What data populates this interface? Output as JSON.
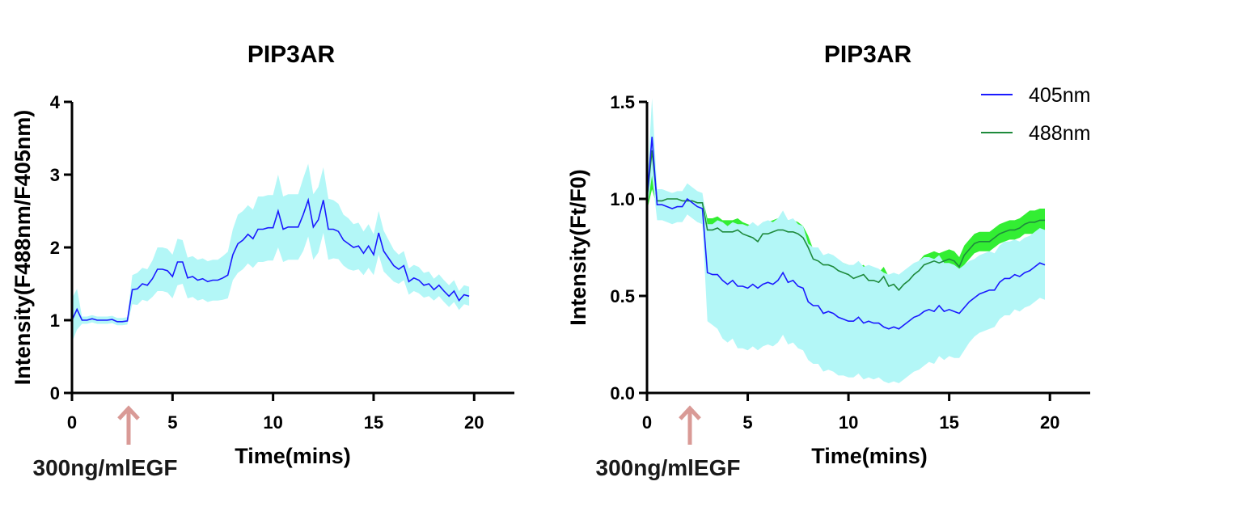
{
  "colors": {
    "axis": "#000000",
    "line_405": "#1a1aff",
    "band_405": "#b3f7f7",
    "line_488": "#1e8a3c",
    "band_488": "#33ee33",
    "arrow": "#d99a96"
  },
  "chart_data": [
    {
      "type": "line",
      "title": "PIP3AR",
      "xlabel": "Time(mins)",
      "ylabel": "Intensity(F488nm/F405nm)",
      "xlim": [
        0,
        22
      ],
      "ylim": [
        0,
        4
      ],
      "xticks": [
        0,
        5,
        10,
        15,
        20
      ],
      "yticks": [
        0,
        1,
        2,
        3,
        4
      ],
      "grid": false,
      "annotation": {
        "text": "300ng/mlEGF",
        "x": 2.9
      },
      "series": [
        {
          "color_key": "405",
          "x": [
            0,
            0.25,
            0.5,
            0.75,
            1,
            1.25,
            1.5,
            1.75,
            2,
            2.25,
            2.5,
            2.75,
            3,
            3.25,
            3.5,
            3.75,
            4,
            4.25,
            4.5,
            4.75,
            5,
            5.25,
            5.5,
            5.75,
            6,
            6.25,
            6.5,
            6.75,
            7,
            7.25,
            7.5,
            7.75,
            8,
            8.25,
            8.5,
            8.75,
            9,
            9.25,
            9.5,
            9.75,
            10,
            10.25,
            10.5,
            10.75,
            11,
            11.25,
            11.5,
            11.75,
            12,
            12.25,
            12.5,
            12.75,
            13,
            13.25,
            13.5,
            13.75,
            14,
            14.25,
            14.5,
            14.75,
            15,
            15.25,
            15.5,
            15.75,
            16,
            16.25,
            16.5,
            16.75,
            17,
            17.25,
            17.5,
            17.75,
            18,
            18.25,
            18.5,
            18.75,
            19,
            19.25,
            19.5,
            19.75
          ],
          "y": [
            1.0,
            1.15,
            1.0,
            1.0,
            1.02,
            1.0,
            1.0,
            1.0,
            1.01,
            0.98,
            0.98,
            0.99,
            1.42,
            1.43,
            1.5,
            1.48,
            1.57,
            1.7,
            1.7,
            1.68,
            1.6,
            1.8,
            1.8,
            1.58,
            1.6,
            1.55,
            1.57,
            1.53,
            1.55,
            1.55,
            1.58,
            1.62,
            1.9,
            2.05,
            2.1,
            2.18,
            2.12,
            2.25,
            2.25,
            2.27,
            2.27,
            2.5,
            2.25,
            2.28,
            2.28,
            2.28,
            2.45,
            2.65,
            2.28,
            2.38,
            2.65,
            2.25,
            2.25,
            2.22,
            2.1,
            2.05,
            2.0,
            2.02,
            1.92,
            2.02,
            1.9,
            2.2,
            1.95,
            1.85,
            1.75,
            1.7,
            1.75,
            1.53,
            1.58,
            1.55,
            1.48,
            1.5,
            1.42,
            1.48,
            1.4,
            1.33,
            1.4,
            1.27,
            1.35,
            1.33
          ],
          "error": [
            0.3,
            0.28,
            0.05,
            0.05,
            0.05,
            0.05,
            0.05,
            0.05,
            0.05,
            0.05,
            0.05,
            0.05,
            0.2,
            0.22,
            0.22,
            0.22,
            0.25,
            0.3,
            0.3,
            0.3,
            0.3,
            0.32,
            0.3,
            0.28,
            0.28,
            0.28,
            0.28,
            0.28,
            0.28,
            0.28,
            0.3,
            0.32,
            0.35,
            0.4,
            0.4,
            0.4,
            0.4,
            0.45,
            0.45,
            0.45,
            0.45,
            0.5,
            0.45,
            0.45,
            0.45,
            0.45,
            0.5,
            0.5,
            0.45,
            0.45,
            0.45,
            0.42,
            0.4,
            0.38,
            0.35,
            0.35,
            0.32,
            0.32,
            0.3,
            0.3,
            0.28,
            0.3,
            0.28,
            0.25,
            0.22,
            0.2,
            0.2,
            0.18,
            0.18,
            0.18,
            0.17,
            0.17,
            0.15,
            0.15,
            0.15,
            0.15,
            0.15,
            0.13,
            0.13,
            0.13
          ]
        }
      ]
    },
    {
      "type": "line",
      "title": "PIP3AR",
      "xlabel": "Time(mins)",
      "ylabel": "Intensity(Ft/F0)",
      "xlim": [
        0,
        22
      ],
      "ylim": [
        0,
        1.5
      ],
      "xticks": [
        0,
        5,
        10,
        15,
        20
      ],
      "yticks": [
        0.0,
        0.5,
        1.0,
        1.5
      ],
      "ytick_labels": [
        "0.0",
        "0.5",
        "1.0",
        "1.5"
      ],
      "grid": false,
      "legend": "top-right",
      "annotation": {
        "text": "300ng/mlEGF",
        "x": 2.2
      },
      "series": [
        {
          "name": "488nm",
          "color_key": "488",
          "x": [
            0,
            0.25,
            0.5,
            0.75,
            1,
            1.25,
            1.5,
            1.75,
            2,
            2.25,
            2.5,
            2.75,
            3,
            3.25,
            3.5,
            3.75,
            4,
            4.25,
            4.5,
            4.75,
            5,
            5.25,
            5.5,
            5.75,
            6,
            6.25,
            6.5,
            6.75,
            7,
            7.25,
            7.5,
            7.75,
            8,
            8.25,
            8.5,
            8.75,
            9,
            9.25,
            9.5,
            9.75,
            10,
            10.25,
            10.5,
            10.75,
            11,
            11.25,
            11.5,
            11.75,
            12,
            12.25,
            12.5,
            12.75,
            13,
            13.25,
            13.5,
            13.75,
            14,
            14.25,
            14.5,
            14.75,
            15,
            15.25,
            15.5,
            15.75,
            16,
            16.25,
            16.5,
            16.75,
            17,
            17.25,
            17.5,
            17.75,
            18,
            18.25,
            18.5,
            18.75,
            19,
            19.25,
            19.5,
            19.75
          ],
          "y": [
            1.0,
            1.25,
            0.99,
            0.99,
            1.0,
            1.0,
            1.0,
            0.99,
            0.99,
            0.99,
            0.98,
            0.98,
            0.84,
            0.84,
            0.85,
            0.83,
            0.83,
            0.83,
            0.84,
            0.82,
            0.81,
            0.8,
            0.78,
            0.82,
            0.82,
            0.83,
            0.84,
            0.84,
            0.83,
            0.83,
            0.82,
            0.8,
            0.75,
            0.69,
            0.68,
            0.66,
            0.66,
            0.65,
            0.63,
            0.62,
            0.61,
            0.59,
            0.6,
            0.61,
            0.58,
            0.58,
            0.57,
            0.6,
            0.55,
            0.56,
            0.53,
            0.56,
            0.58,
            0.61,
            0.63,
            0.66,
            0.67,
            0.68,
            0.67,
            0.68,
            0.69,
            0.68,
            0.65,
            0.71,
            0.74,
            0.77,
            0.78,
            0.78,
            0.78,
            0.8,
            0.82,
            0.83,
            0.84,
            0.84,
            0.85,
            0.87,
            0.88,
            0.88,
            0.89,
            0.89
          ],
          "error": [
            0.06,
            0.2,
            0.03,
            0.03,
            0.03,
            0.03,
            0.03,
            0.03,
            0.03,
            0.03,
            0.03,
            0.03,
            0.06,
            0.06,
            0.06,
            0.06,
            0.06,
            0.06,
            0.06,
            0.06,
            0.06,
            0.06,
            0.06,
            0.06,
            0.06,
            0.06,
            0.06,
            0.06,
            0.06,
            0.06,
            0.06,
            0.06,
            0.06,
            0.05,
            0.05,
            0.05,
            0.05,
            0.05,
            0.05,
            0.05,
            0.05,
            0.05,
            0.05,
            0.05,
            0.05,
            0.05,
            0.05,
            0.05,
            0.05,
            0.05,
            0.05,
            0.05,
            0.05,
            0.05,
            0.05,
            0.05,
            0.05,
            0.05,
            0.05,
            0.05,
            0.05,
            0.05,
            0.05,
            0.05,
            0.05,
            0.05,
            0.05,
            0.05,
            0.05,
            0.05,
            0.05,
            0.05,
            0.05,
            0.05,
            0.05,
            0.05,
            0.06,
            0.06,
            0.06,
            0.06
          ]
        },
        {
          "name": "405nm",
          "color_key": "405",
          "x": [
            0,
            0.25,
            0.5,
            0.75,
            1,
            1.25,
            1.5,
            1.75,
            2,
            2.25,
            2.5,
            2.75,
            3,
            3.25,
            3.5,
            3.75,
            4,
            4.25,
            4.5,
            4.75,
            5,
            5.25,
            5.5,
            5.75,
            6,
            6.25,
            6.5,
            6.75,
            7,
            7.25,
            7.5,
            7.75,
            8,
            8.25,
            8.5,
            8.75,
            9,
            9.25,
            9.5,
            9.75,
            10,
            10.25,
            10.5,
            10.75,
            11,
            11.25,
            11.5,
            11.75,
            12,
            12.25,
            12.5,
            12.75,
            13,
            13.25,
            13.5,
            13.75,
            14,
            14.25,
            14.5,
            14.75,
            15,
            15.25,
            15.5,
            15.75,
            16,
            16.25,
            16.5,
            16.75,
            17,
            17.25,
            17.5,
            17.75,
            18,
            18.25,
            18.5,
            18.75,
            19,
            19.25,
            19.5,
            19.75
          ],
          "y": [
            1.0,
            1.32,
            0.97,
            0.97,
            0.96,
            0.95,
            0.96,
            0.96,
            1.0,
            0.98,
            0.96,
            0.95,
            0.62,
            0.61,
            0.61,
            0.58,
            0.56,
            0.58,
            0.55,
            0.55,
            0.54,
            0.56,
            0.54,
            0.56,
            0.57,
            0.56,
            0.58,
            0.62,
            0.57,
            0.58,
            0.55,
            0.54,
            0.47,
            0.45,
            0.45,
            0.41,
            0.42,
            0.41,
            0.39,
            0.38,
            0.37,
            0.37,
            0.39,
            0.36,
            0.37,
            0.36,
            0.36,
            0.34,
            0.33,
            0.34,
            0.33,
            0.35,
            0.37,
            0.39,
            0.4,
            0.42,
            0.43,
            0.42,
            0.45,
            0.42,
            0.43,
            0.42,
            0.41,
            0.44,
            0.47,
            0.49,
            0.51,
            0.52,
            0.53,
            0.53,
            0.57,
            0.59,
            0.59,
            0.61,
            0.6,
            0.62,
            0.63,
            0.65,
            0.67,
            0.66
          ],
          "error": [
            0.05,
            0.2,
            0.08,
            0.08,
            0.08,
            0.08,
            0.08,
            0.08,
            0.08,
            0.08,
            0.08,
            0.08,
            0.25,
            0.26,
            0.28,
            0.3,
            0.3,
            0.3,
            0.32,
            0.32,
            0.32,
            0.32,
            0.32,
            0.32,
            0.32,
            0.32,
            0.32,
            0.32,
            0.32,
            0.32,
            0.32,
            0.32,
            0.3,
            0.3,
            0.3,
            0.3,
            0.3,
            0.3,
            0.3,
            0.29,
            0.29,
            0.29,
            0.29,
            0.29,
            0.29,
            0.29,
            0.28,
            0.28,
            0.28,
            0.28,
            0.28,
            0.28,
            0.28,
            0.28,
            0.28,
            0.28,
            0.27,
            0.27,
            0.26,
            0.25,
            0.24,
            0.24,
            0.23,
            0.22,
            0.21,
            0.2,
            0.2,
            0.2,
            0.2,
            0.19,
            0.19,
            0.19,
            0.19,
            0.18,
            0.18,
            0.18,
            0.18,
            0.18,
            0.18,
            0.18
          ]
        }
      ]
    }
  ]
}
